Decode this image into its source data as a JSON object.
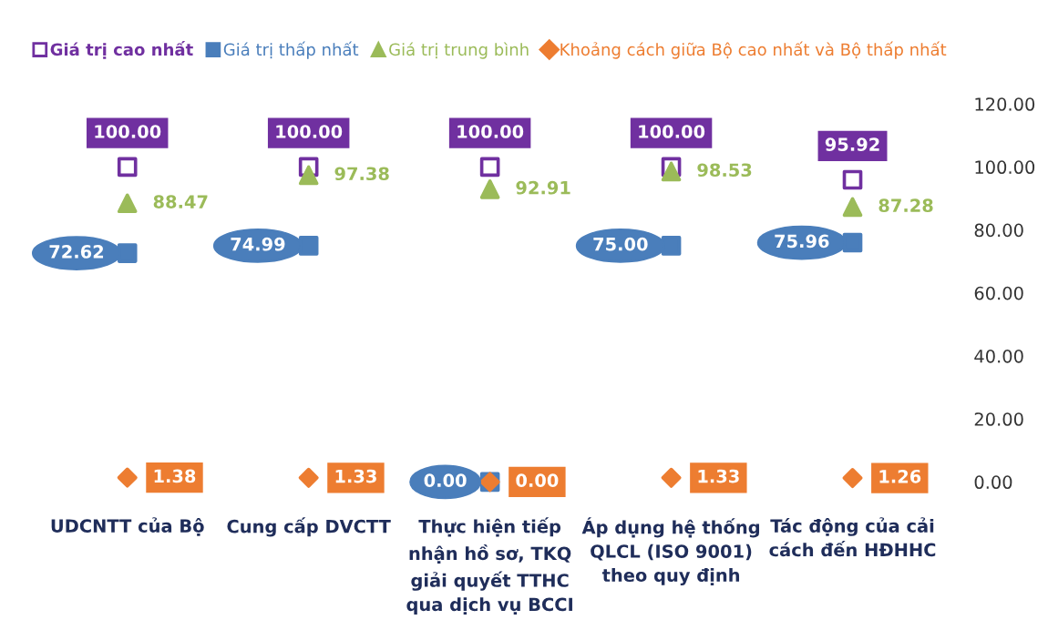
{
  "chart_data": {
    "type": "scatter",
    "categories": [
      "UDCNTT của Bộ",
      "Cung cấp DVCTT",
      "Thực hiện tiếp\nnhận hồ sơ, TKQ\ngiải quyết TTHC\nqua dịch vụ BCCI",
      "Áp dụng hệ thống\nQLCL (ISO 9001)\ntheo quy định",
      "Tác động của cải\ncách đến HĐHHC"
    ],
    "series": [
      {
        "name": "Giá trị cao nhất",
        "color": "#7030a0",
        "marker": "square",
        "values": [
          100.0,
          100.0,
          100.0,
          100.0,
          95.92
        ],
        "value_labels": [
          "100.00",
          "100.00",
          "100.00",
          "100.00",
          "95.92"
        ]
      },
      {
        "name": "Giá trị thấp nhất",
        "color": "#4a7ebb",
        "marker": "square",
        "values": [
          72.62,
          74.99,
          0.0,
          75.0,
          75.96
        ],
        "value_labels": [
          "72.62",
          "74.99",
          "0.00",
          "75.00",
          "75.96"
        ]
      },
      {
        "name": "Giá trị trung bình",
        "color": "#9bbb59",
        "marker": "triangle",
        "values": [
          88.47,
          97.38,
          92.91,
          98.53,
          87.28
        ],
        "value_labels": [
          "88.47",
          "97.38",
          "92.91",
          "98.53",
          "87.28"
        ]
      },
      {
        "name": "Khoảng cách giữa Bộ cao nhất và Bộ thấp nhất",
        "color": "#ed7d31",
        "marker": "diamond",
        "values": [
          1.38,
          1.33,
          0.0,
          1.33,
          1.26
        ],
        "value_labels": [
          "1.38",
          "1.33",
          "0.00",
          "1.33",
          "1.26"
        ]
      }
    ],
    "ylim": [
      0,
      120
    ],
    "yticks": [
      {
        "value": 0,
        "label": "0.00"
      },
      {
        "value": 20,
        "label": "20.00"
      },
      {
        "value": 40,
        "label": "40.00"
      },
      {
        "value": 60,
        "label": "60.00"
      },
      {
        "value": 80,
        "label": "80.00"
      },
      {
        "value": 100,
        "label": "100.00"
      },
      {
        "value": 120,
        "label": "120.00"
      }
    ],
    "legend": "top",
    "grid": false
  }
}
